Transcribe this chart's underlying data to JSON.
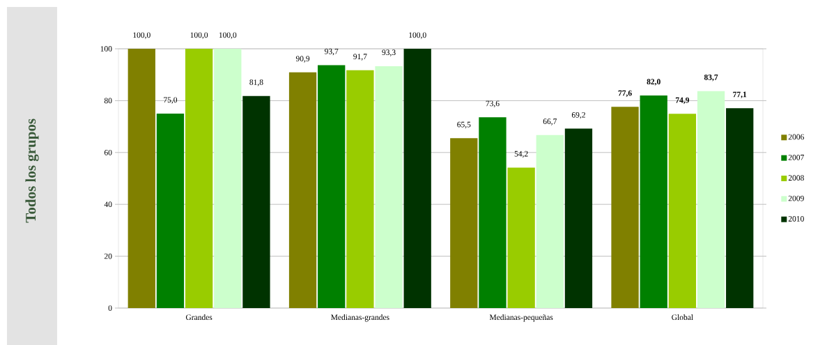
{
  "chart_data": {
    "type": "bar",
    "ylabel": "Todos los grupos",
    "categories": [
      "Grandes",
      "Medianas-grandes",
      "Medianas-pequeñas",
      "Global"
    ],
    "series": [
      {
        "name": "2006",
        "color": "#808000",
        "values": [
          100.0,
          90.9,
          65.5,
          77.6
        ],
        "value_labels": [
          "100,0",
          "90,9",
          "65,5",
          "**77,6**"
        ]
      },
      {
        "name": "2007",
        "color": "#008000",
        "values": [
          75.0,
          93.7,
          73.6,
          82.0
        ],
        "value_labels": [
          "75,0",
          "93,7",
          "73,6",
          "**82,0**"
        ]
      },
      {
        "name": "2008",
        "color": "#99cc00",
        "values": [
          100.0,
          91.7,
          54.2,
          74.9
        ],
        "value_labels": [
          "100,0",
          "91,7",
          "54,2",
          "**74,9**"
        ]
      },
      {
        "name": "2009",
        "color": "#ccffcc",
        "values": [
          100.0,
          93.3,
          66.7,
          83.7
        ],
        "value_labels": [
          "100,0",
          "93,3",
          "66,7",
          "**83,7**"
        ]
      },
      {
        "name": "2010",
        "color": "#003300",
        "values": [
          81.8,
          100.0,
          69.2,
          77.1
        ],
        "value_labels": [
          "81,8",
          "100,0",
          "69,2",
          "**77,1**"
        ]
      }
    ],
    "ylim": [
      0,
      100
    ],
    "yticks": [
      0,
      20,
      40,
      60,
      80,
      100
    ],
    "grid": "y",
    "legend": "right"
  }
}
